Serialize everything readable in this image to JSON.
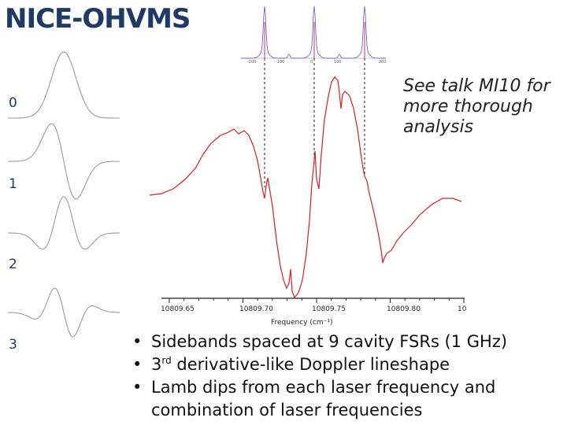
{
  "title": "NICE-OHVMS",
  "derivatives": {
    "labels": [
      "0",
      "1",
      "2",
      "3"
    ],
    "line_color": "#9a9a9a"
  },
  "note": "See talk MI10 for more thorough analysis",
  "spectrum": {
    "line_color": "#d62020",
    "x_axis_label": "Frequency (cm⁻¹)",
    "x_tick_labels": [
      "10809.65",
      "10809.70",
      "10809.75",
      "10809.80",
      "10"
    ]
  },
  "laser_spectrum": {
    "line_color": "#7a5ec8",
    "peak_color": "#c03080",
    "tick_labels": [
      "-200",
      "-100",
      "0",
      "100",
      "200"
    ]
  },
  "bullets": [
    {
      "pre": "Sidebands spaced at 9 cavity FSRs (1 GHz)",
      "sup": "",
      "post": ""
    },
    {
      "pre": "3",
      "sup": "rd",
      "post": " derivative-like Doppler lineshape"
    },
    {
      "pre": "Lamb dips from each laser frequency and combination of laser frequencies",
      "sup": "",
      "post": ""
    }
  ]
}
